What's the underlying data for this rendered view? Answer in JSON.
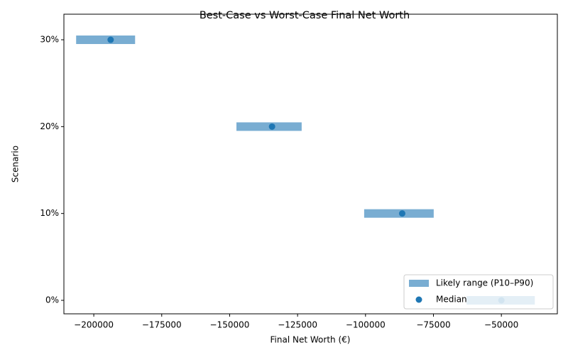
{
  "chart_data": {
    "type": "range",
    "title": "Best-Case vs Worst-Case Final Net Worth",
    "x_label": "Final Net Worth (€)",
    "y_label": "Scenario",
    "categories": [
      "0%",
      "10%",
      "20%",
      "30%"
    ],
    "series": [
      {
        "name": "Likely range (P10–P90)",
        "color": "#1f77b4",
        "opacity": 0.6,
        "low": [
          -62800,
          -100500,
          -147500,
          -206500
        ],
        "high": [
          -37700,
          -74900,
          -123500,
          -184800
        ]
      },
      {
        "name": "Median",
        "color": "#1f77b4",
        "values": [
          -50000,
          -86500,
          -134400,
          -193800
        ]
      }
    ],
    "xlim": [
      -211000,
      -29400
    ],
    "xticks": [
      {
        "value": -200000,
        "label": "−200000"
      },
      {
        "value": -175000,
        "label": "−175000"
      },
      {
        "value": -150000,
        "label": "−150000"
      },
      {
        "value": -125000,
        "label": "−125000"
      },
      {
        "value": -100000,
        "label": "−100000"
      },
      {
        "value": -75000,
        "label": "−75000"
      },
      {
        "value": -50000,
        "label": "−50000"
      }
    ],
    "grid": false,
    "legend": "lower right"
  }
}
